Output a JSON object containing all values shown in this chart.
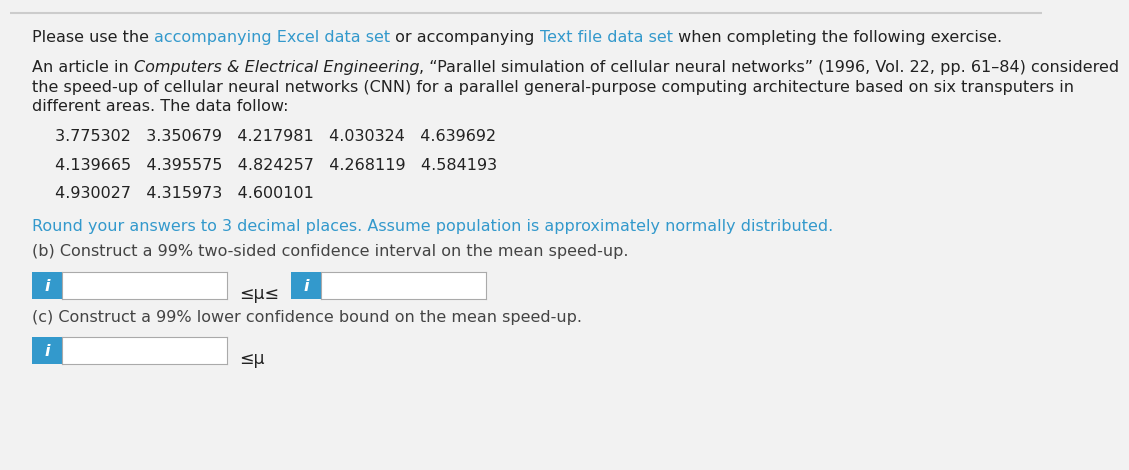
{
  "line1": "Please use the ",
  "link1": "accompanying Excel data set",
  "mid1": " or accompanying ",
  "link2": "Text file data set",
  "end1": " when completing the following exercise.",
  "para1_intro": "An article in ",
  "para1_italic": "Computers & Electrical Engineering",
  "para1_rest": ", “Parallel simulation of cellular neural networks” (1996, Vol. 22, pp. 61–84) considered",
  "para1_line2": "the speed-up of cellular neural networks (CNN) for a parallel general-purpose computing architecture based on six transputers in",
  "para1_line3": "different areas. The data follow:",
  "data_row1": " 3.775302   3.350679   4.217981   4.030324   4.639692",
  "data_row2": " 4.139665   4.395575   4.824257   4.268119   4.584193",
  "data_row3": " 4.930027   4.315973   4.600101",
  "round_text": "Round your answers to 3 decimal places. Assume population is approximately normally distributed.",
  "part_b": "(b) Construct a 99% two-sided confidence interval on the mean speed-up.",
  "leq_mu_leq": "≤μ≤",
  "part_c": "(c) Construct a 99% lower confidence bound on the mean speed-up.",
  "leq_mu": "≤μ",
  "link_color": "#3399CC",
  "blue_btn_color": "#3399CC",
  "background_color": "#F2F2F2",
  "box_border_color": "#AAAAAA",
  "text_color": "#222222",
  "round_text_color": "#3399CC",
  "part_bc_color": "#444444",
  "font_size": 11.5,
  "data_font_size": 11.5,
  "top_border_color": "#CCCCCC"
}
